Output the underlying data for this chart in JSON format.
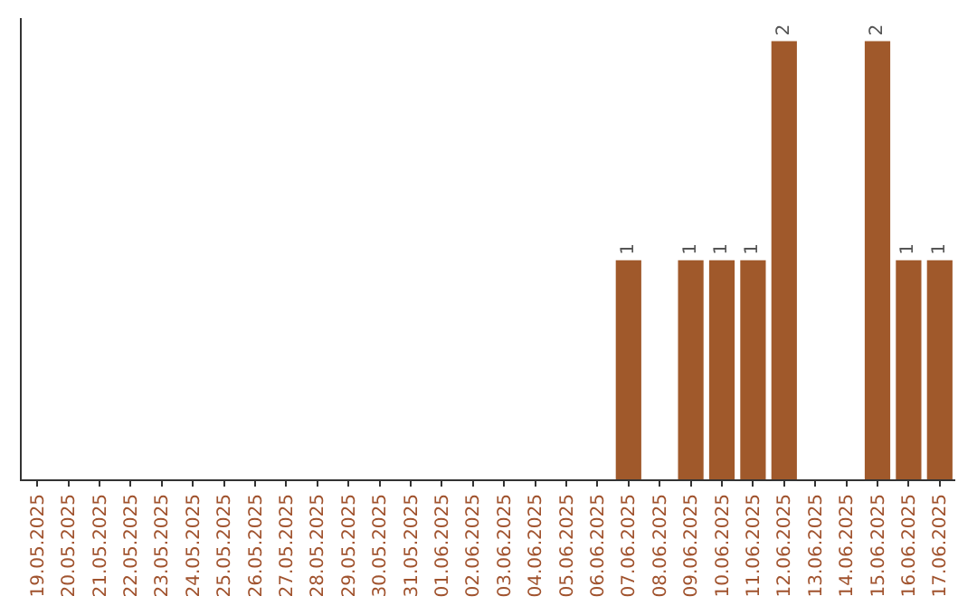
{
  "chart_data": {
    "type": "bar",
    "categories": [
      "19.05.2025",
      "20.05.2025",
      "21.05.2025",
      "22.05.2025",
      "23.05.2025",
      "24.05.2025",
      "25.05.2025",
      "26.05.2025",
      "27.05.2025",
      "28.05.2025",
      "29.05.2025",
      "30.05.2025",
      "31.05.2025",
      "01.06.2025",
      "02.06.2025",
      "03.06.2025",
      "04.06.2025",
      "05.06.2025",
      "06.06.2025",
      "07.06.2025",
      "08.06.2025",
      "09.06.2025",
      "10.06.2025",
      "11.06.2025",
      "12.06.2025",
      "13.06.2025",
      "14.06.2025",
      "15.06.2025",
      "16.06.2025",
      "17.06.2025"
    ],
    "values": [
      null,
      null,
      null,
      null,
      null,
      null,
      null,
      null,
      null,
      null,
      null,
      null,
      null,
      null,
      null,
      null,
      null,
      null,
      null,
      1,
      null,
      1,
      1,
      1,
      2,
      null,
      null,
      2,
      1,
      1
    ],
    "value_labels": [
      null,
      null,
      null,
      null,
      null,
      null,
      null,
      null,
      null,
      null,
      null,
      null,
      null,
      null,
      null,
      null,
      null,
      null,
      null,
      "1",
      null,
      "1",
      "1",
      "1",
      "2",
      null,
      null,
      "2",
      "1",
      "1"
    ],
    "color": "#a0592b",
    "tick_labels": "x"
  }
}
